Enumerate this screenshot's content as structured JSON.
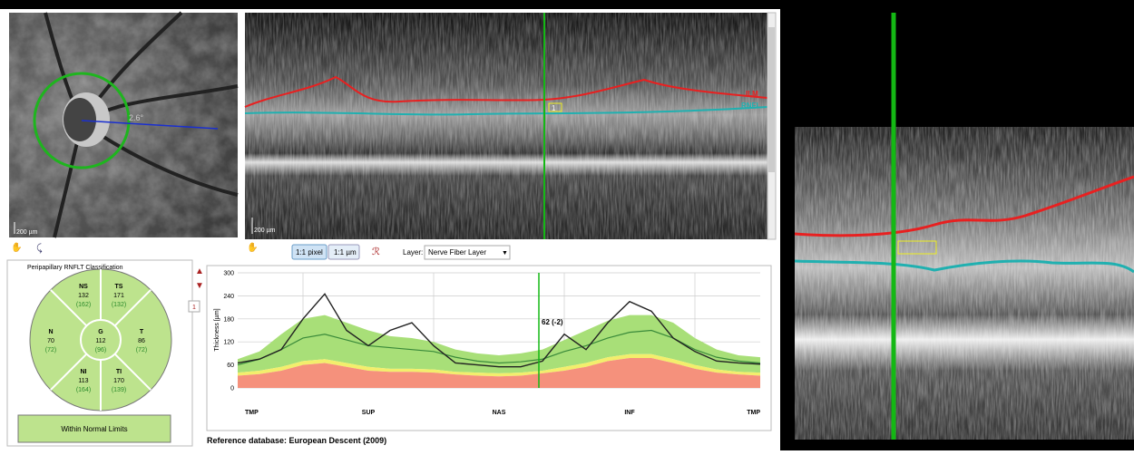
{
  "fundus": {
    "angle_label": "2.6°",
    "scale_label": "200 µm"
  },
  "bscan": {
    "scale_label": "200 µm",
    "layer_labels": [
      "ILM",
      "RNFL"
    ],
    "marker": "1"
  },
  "toolbar": {
    "pixel_button": "1:1 pixel",
    "micron_button": "1:1 µm",
    "layer_label": "Layer:",
    "layer_value": "Nerve Fiber Layer"
  },
  "classification": {
    "title": "Peripapillary RNFLT Classification",
    "sectors": [
      {
        "name": "NS",
        "value": 132,
        "reference": "(162)"
      },
      {
        "name": "TS",
        "value": 171,
        "reference": "(132)"
      },
      {
        "name": "N",
        "value": 70,
        "reference": "(72)"
      },
      {
        "name": "G",
        "value": 112,
        "reference": "(96)"
      },
      {
        "name": "T",
        "value": 86,
        "reference": "(72)"
      },
      {
        "name": "NI",
        "value": 113,
        "reference": "(164)"
      },
      {
        "name": "TI",
        "value": 170,
        "reference": "(139)"
      }
    ],
    "status": "Within Normal Limits"
  },
  "profile": {
    "page_marker": "1",
    "y_label": "Thickness [µm]",
    "ylim": [
      0,
      300
    ],
    "yticks": [
      0,
      60,
      120,
      180,
      240,
      300
    ],
    "x_labels": [
      "TMP",
      "SUP",
      "NAS",
      "INF",
      "TMP"
    ],
    "cursor_label": "62 (-2)",
    "red_upper": [
      32,
      36,
      45,
      60,
      65,
      55,
      45,
      42,
      42,
      40,
      35,
      32,
      30,
      32,
      38,
      45,
      55,
      70,
      78,
      78,
      65,
      50,
      40,
      35,
      32
    ],
    "yellow_upper": [
      40,
      45,
      55,
      70,
      75,
      65,
      55,
      50,
      50,
      48,
      42,
      40,
      38,
      40,
      45,
      55,
      65,
      80,
      88,
      88,
      75,
      60,
      48,
      42,
      40
    ],
    "green_upper": [
      75,
      95,
      140,
      180,
      190,
      170,
      150,
      135,
      130,
      120,
      100,
      90,
      85,
      90,
      100,
      125,
      150,
      175,
      190,
      190,
      170,
      130,
      100,
      85,
      80
    ],
    "normal_mean": [
      60,
      75,
      100,
      130,
      140,
      125,
      110,
      105,
      100,
      95,
      80,
      70,
      65,
      68,
      75,
      95,
      110,
      130,
      145,
      150,
      130,
      100,
      80,
      70,
      65
    ],
    "measured": [
      65,
      75,
      100,
      180,
      245,
      150,
      110,
      150,
      170,
      110,
      65,
      60,
      55,
      55,
      70,
      140,
      100,
      170,
      225,
      200,
      130,
      95,
      70,
      65,
      62
    ]
  },
  "footer": "Reference database: European Descent (2009)"
}
